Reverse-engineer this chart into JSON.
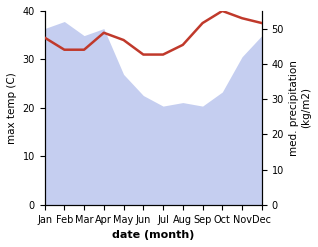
{
  "months": [
    "Jan",
    "Feb",
    "Mar",
    "Apr",
    "May",
    "Jun",
    "Jul",
    "Aug",
    "Sep",
    "Oct",
    "Nov",
    "Dec"
  ],
  "temp": [
    34.5,
    32.0,
    32.0,
    35.5,
    34.0,
    31.0,
    31.0,
    33.0,
    37.5,
    40.0,
    38.5,
    37.5
  ],
  "precip": [
    50.0,
    52.0,
    48.0,
    50.0,
    37.0,
    31.0,
    28.0,
    29.0,
    28.0,
    32.0,
    42.0,
    48.0
  ],
  "temp_color": "#c0392b",
  "precip_fill_color": "#c5cef0",
  "ylabel_left": "max temp (C)",
  "ylabel_right": "med. precipitation\n(kg/m2)",
  "xlabel": "date (month)",
  "ylim_left": [
    0,
    40
  ],
  "ylim_right": [
    0,
    55
  ],
  "yticks_left": [
    0,
    10,
    20,
    30,
    40
  ],
  "yticks_right": [
    0,
    10,
    20,
    30,
    40,
    50
  ],
  "bg_color": "#ffffff"
}
